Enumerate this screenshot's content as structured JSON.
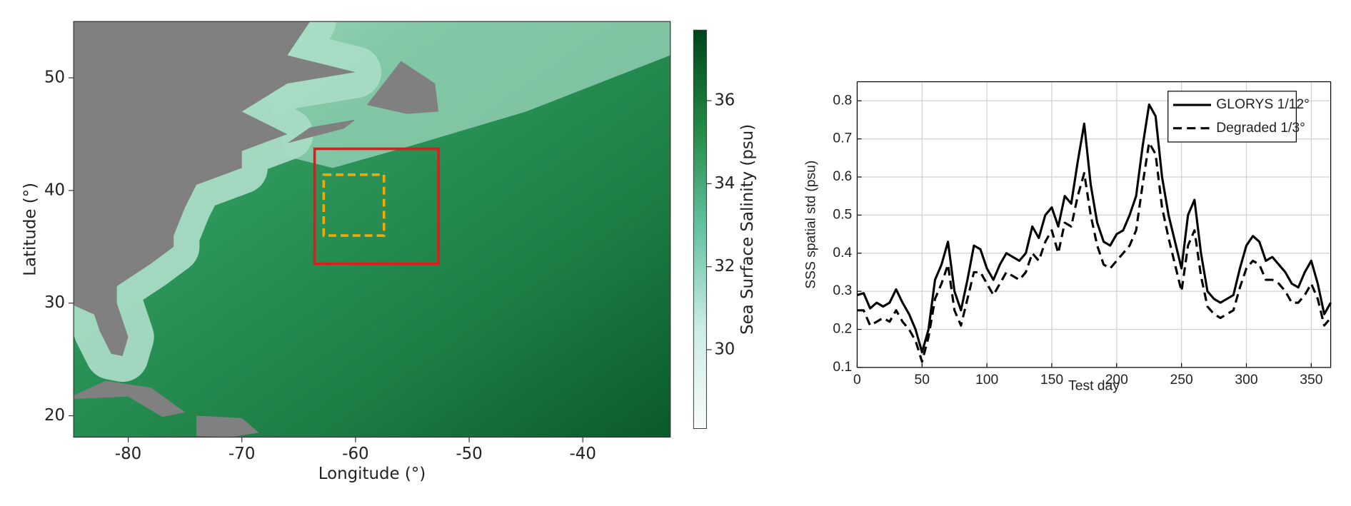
{
  "chart_data": [
    {
      "type": "map",
      "xlabel": "Longitude (°)",
      "ylabel": "Latitude (°)",
      "xlim": [
        -84.8,
        -32.3
      ],
      "ylim": [
        18.1,
        55
      ],
      "xticks": [
        -80,
        -70,
        -60,
        -50,
        -40
      ],
      "yticks": [
        20,
        30,
        40,
        50
      ],
      "colorbar": {
        "label": "Sea Surface Salinity (psu)",
        "lim": [
          28.1,
          37.7
        ],
        "ticks": [
          30,
          32,
          34,
          36
        ],
        "colors": [
          "#f7fcfb",
          "#ccece6",
          "#66c2a4",
          "#238b45",
          "#00441b"
        ]
      },
      "regions": [
        {
          "color": "#e31a1c",
          "style": "solid",
          "lon": [
            -63.6,
            -52.7
          ],
          "lat": [
            33.5,
            43.7
          ]
        },
        {
          "color": "#f5a800",
          "style": "dashed",
          "lon": [
            -62.8,
            -57.5
          ],
          "lat": [
            36.0,
            41.4
          ]
        }
      ]
    },
    {
      "type": "line",
      "xlabel": "Test day",
      "ylabel": "SSS spatial std (psu)",
      "x": [
        0,
        5,
        10,
        15,
        20,
        25,
        30,
        35,
        40,
        45,
        50,
        55,
        60,
        65,
        70,
        75,
        80,
        85,
        90,
        95,
        100,
        105,
        110,
        115,
        120,
        125,
        130,
        135,
        140,
        145,
        150,
        155,
        160,
        165,
        170,
        175,
        180,
        185,
        190,
        195,
        200,
        205,
        210,
        215,
        220,
        225,
        230,
        235,
        240,
        245,
        250,
        255,
        260,
        265,
        270,
        275,
        280,
        285,
        290,
        295,
        300,
        305,
        310,
        315,
        320,
        325,
        330,
        335,
        340,
        345,
        350,
        355,
        360,
        365
      ],
      "series": [
        {
          "name": "GLORYS 1/12°",
          "color": "#000000",
          "dash": "solid",
          "values": [
            0.29,
            0.295,
            0.255,
            0.27,
            0.26,
            0.27,
            0.305,
            0.27,
            0.24,
            0.2,
            0.14,
            0.2,
            0.33,
            0.37,
            0.43,
            0.3,
            0.25,
            0.33,
            0.42,
            0.41,
            0.36,
            0.33,
            0.37,
            0.4,
            0.39,
            0.38,
            0.4,
            0.47,
            0.44,
            0.5,
            0.52,
            0.47,
            0.55,
            0.53,
            0.64,
            0.74,
            0.58,
            0.48,
            0.43,
            0.42,
            0.45,
            0.46,
            0.5,
            0.55,
            0.68,
            0.79,
            0.76,
            0.6,
            0.5,
            0.43,
            0.36,
            0.5,
            0.54,
            0.4,
            0.3,
            0.28,
            0.27,
            0.28,
            0.29,
            0.36,
            0.42,
            0.445,
            0.43,
            0.38,
            0.39,
            0.37,
            0.35,
            0.32,
            0.31,
            0.35,
            0.38,
            0.32,
            0.24,
            0.27
          ]
        },
        {
          "name": "Degraded 1/3°",
          "color": "#000000",
          "dash": "dashed",
          "values": [
            0.25,
            0.25,
            0.21,
            0.22,
            0.23,
            0.22,
            0.25,
            0.22,
            0.2,
            0.17,
            0.115,
            0.18,
            0.28,
            0.32,
            0.37,
            0.25,
            0.21,
            0.28,
            0.35,
            0.35,
            0.32,
            0.29,
            0.32,
            0.35,
            0.34,
            0.33,
            0.35,
            0.4,
            0.38,
            0.43,
            0.46,
            0.4,
            0.48,
            0.47,
            0.55,
            0.61,
            0.5,
            0.42,
            0.37,
            0.36,
            0.38,
            0.4,
            0.42,
            0.46,
            0.58,
            0.69,
            0.66,
            0.52,
            0.44,
            0.37,
            0.3,
            0.42,
            0.46,
            0.34,
            0.26,
            0.24,
            0.23,
            0.24,
            0.25,
            0.31,
            0.36,
            0.38,
            0.37,
            0.33,
            0.33,
            0.32,
            0.3,
            0.27,
            0.27,
            0.29,
            0.32,
            0.28,
            0.21,
            0.23
          ]
        }
      ],
      "xlim": [
        0,
        365
      ],
      "ylim": [
        0.1,
        0.85
      ],
      "xticks": [
        0,
        50,
        100,
        150,
        200,
        250,
        300,
        350
      ],
      "yticks": [
        0.1,
        0.2,
        0.3,
        0.4,
        0.5,
        0.6,
        0.7,
        0.8
      ],
      "grid": true,
      "legend": "upper right"
    }
  ]
}
